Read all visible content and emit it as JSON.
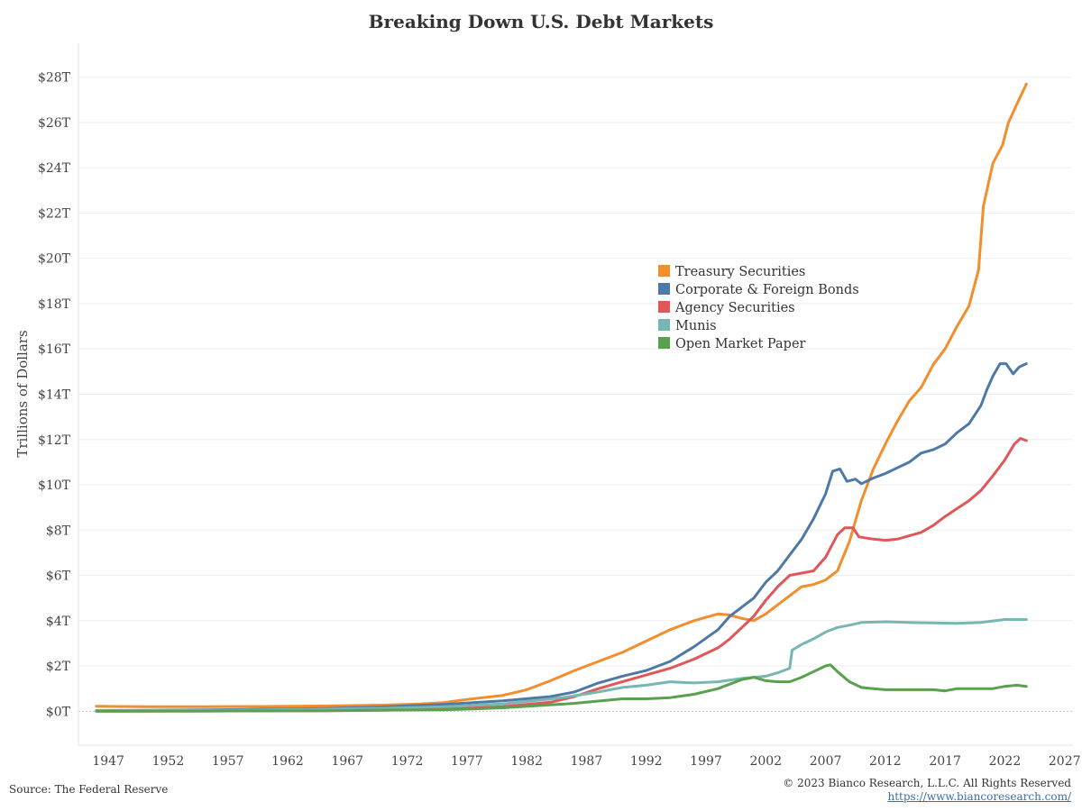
{
  "chart_data": {
    "type": "line",
    "title": "Breaking Down U.S. Debt Markets",
    "ylabel": "Trillions of Dollars",
    "xlabel": "",
    "ylim": [
      -1.5,
      29.5
    ],
    "xlim": [
      1944.5,
      2027.7
    ],
    "yticks": [
      0,
      2,
      4,
      6,
      8,
      10,
      12,
      14,
      16,
      18,
      20,
      22,
      24,
      26,
      28
    ],
    "ytick_labels": [
      "$0T",
      "$2T",
      "$4T",
      "$6T",
      "$8T",
      "$10T",
      "$12T",
      "$14T",
      "$16T",
      "$18T",
      "$20T",
      "$22T",
      "$24T",
      "$26T",
      "$28T"
    ],
    "xticks": [
      1947,
      1952,
      1957,
      1962,
      1967,
      1972,
      1977,
      1982,
      1987,
      1992,
      1997,
      2002,
      2007,
      2012,
      2017,
      2022,
      2027
    ],
    "xtick_labels": [
      "1947",
      "1952",
      "1957",
      "1962",
      "1967",
      "1972",
      "1977",
      "1982",
      "1987",
      "1992",
      "1997",
      "2002",
      "2007",
      "2012",
      "2017",
      "2022",
      "2027"
    ],
    "grid": "horizontal",
    "legend_position": "center-right",
    "series": [
      {
        "name": "Treasury Securities",
        "color": "#f28e2b",
        "points": [
          [
            1946,
            0.22
          ],
          [
            1950,
            0.2
          ],
          [
            1955,
            0.2
          ],
          [
            1960,
            0.21
          ],
          [
            1965,
            0.23
          ],
          [
            1970,
            0.27
          ],
          [
            1973,
            0.32
          ],
          [
            1975,
            0.38
          ],
          [
            1977,
            0.52
          ],
          [
            1980,
            0.7
          ],
          [
            1982,
            0.95
          ],
          [
            1984,
            1.35
          ],
          [
            1986,
            1.8
          ],
          [
            1988,
            2.2
          ],
          [
            1990,
            2.6
          ],
          [
            1992,
            3.1
          ],
          [
            1994,
            3.6
          ],
          [
            1996,
            4.0
          ],
          [
            1998,
            4.3
          ],
          [
            1999,
            4.25
          ],
          [
            2000,
            4.1
          ],
          [
            2001,
            4.0
          ],
          [
            2002,
            4.3
          ],
          [
            2003,
            4.7
          ],
          [
            2004,
            5.1
          ],
          [
            2005,
            5.5
          ],
          [
            2006,
            5.6
          ],
          [
            2007,
            5.8
          ],
          [
            2008,
            6.2
          ],
          [
            2009,
            7.5
          ],
          [
            2010,
            9.3
          ],
          [
            2011,
            10.7
          ],
          [
            2012,
            11.8
          ],
          [
            2013,
            12.8
          ],
          [
            2014,
            13.7
          ],
          [
            2015,
            14.3
          ],
          [
            2016,
            15.3
          ],
          [
            2017,
            16.0
          ],
          [
            2018,
            17.0
          ],
          [
            2019,
            17.9
          ],
          [
            2019.8,
            19.5
          ],
          [
            2020.2,
            22.3
          ],
          [
            2021,
            24.2
          ],
          [
            2021.8,
            25.0
          ],
          [
            2022.3,
            26.0
          ],
          [
            2023,
            26.8
          ],
          [
            2023.8,
            27.7
          ]
        ]
      },
      {
        "name": "Corporate & Foreign Bonds",
        "color": "#4e79a7",
        "points": [
          [
            1946,
            0.03
          ],
          [
            1950,
            0.04
          ],
          [
            1955,
            0.06
          ],
          [
            1960,
            0.09
          ],
          [
            1965,
            0.12
          ],
          [
            1970,
            0.19
          ],
          [
            1975,
            0.3
          ],
          [
            1980,
            0.46
          ],
          [
            1984,
            0.65
          ],
          [
            1986,
            0.85
          ],
          [
            1988,
            1.25
          ],
          [
            1990,
            1.55
          ],
          [
            1992,
            1.8
          ],
          [
            1994,
            2.2
          ],
          [
            1996,
            2.85
          ],
          [
            1998,
            3.6
          ],
          [
            1999,
            4.2
          ],
          [
            2000,
            4.6
          ],
          [
            2001,
            5.0
          ],
          [
            2002,
            5.7
          ],
          [
            2003,
            6.2
          ],
          [
            2004,
            6.9
          ],
          [
            2005,
            7.6
          ],
          [
            2006,
            8.5
          ],
          [
            2007,
            9.6
          ],
          [
            2007.6,
            10.6
          ],
          [
            2008.2,
            10.7
          ],
          [
            2008.8,
            10.15
          ],
          [
            2009.5,
            10.25
          ],
          [
            2010,
            10.05
          ],
          [
            2011,
            10.3
          ],
          [
            2012,
            10.5
          ],
          [
            2013,
            10.75
          ],
          [
            2014,
            11.0
          ],
          [
            2015,
            11.4
          ],
          [
            2016,
            11.55
          ],
          [
            2017,
            11.8
          ],
          [
            2018,
            12.3
          ],
          [
            2019,
            12.7
          ],
          [
            2020,
            13.5
          ],
          [
            2020.5,
            14.2
          ],
          [
            2021,
            14.8
          ],
          [
            2021.6,
            15.35
          ],
          [
            2022.1,
            15.35
          ],
          [
            2022.7,
            14.9
          ],
          [
            2023.2,
            15.2
          ],
          [
            2023.8,
            15.35
          ]
        ]
      },
      {
        "name": "Agency Securities",
        "color": "#e15759",
        "points": [
          [
            1946,
            0.0
          ],
          [
            1955,
            0.01
          ],
          [
            1965,
            0.02
          ],
          [
            1970,
            0.04
          ],
          [
            1975,
            0.09
          ],
          [
            1980,
            0.2
          ],
          [
            1984,
            0.4
          ],
          [
            1986,
            0.65
          ],
          [
            1988,
            1.0
          ],
          [
            1990,
            1.3
          ],
          [
            1992,
            1.6
          ],
          [
            1994,
            1.9
          ],
          [
            1996,
            2.3
          ],
          [
            1998,
            2.8
          ],
          [
            1999,
            3.2
          ],
          [
            2000,
            3.7
          ],
          [
            2001,
            4.2
          ],
          [
            2002,
            4.9
          ],
          [
            2003,
            5.5
          ],
          [
            2004,
            6.0
          ],
          [
            2005,
            6.1
          ],
          [
            2006,
            6.2
          ],
          [
            2007,
            6.8
          ],
          [
            2008,
            7.8
          ],
          [
            2008.6,
            8.1
          ],
          [
            2009.3,
            8.1
          ],
          [
            2009.8,
            7.7
          ],
          [
            2011,
            7.6
          ],
          [
            2012,
            7.55
          ],
          [
            2013,
            7.6
          ],
          [
            2014,
            7.75
          ],
          [
            2015,
            7.9
          ],
          [
            2016,
            8.2
          ],
          [
            2017,
            8.6
          ],
          [
            2018,
            8.95
          ],
          [
            2019,
            9.3
          ],
          [
            2020,
            9.75
          ],
          [
            2021,
            10.4
          ],
          [
            2022,
            11.1
          ],
          [
            2022.8,
            11.8
          ],
          [
            2023.3,
            12.05
          ],
          [
            2023.8,
            11.95
          ]
        ]
      },
      {
        "name": "Munis",
        "color": "#76b7b2",
        "points": [
          [
            1946,
            0.02
          ],
          [
            1955,
            0.04
          ],
          [
            1960,
            0.06
          ],
          [
            1965,
            0.09
          ],
          [
            1970,
            0.13
          ],
          [
            1975,
            0.2
          ],
          [
            1980,
            0.32
          ],
          [
            1985,
            0.6
          ],
          [
            1988,
            0.85
          ],
          [
            1990,
            1.05
          ],
          [
            1992,
            1.15
          ],
          [
            1994,
            1.3
          ],
          [
            1996,
            1.25
          ],
          [
            1998,
            1.3
          ],
          [
            2000,
            1.45
          ],
          [
            2002,
            1.55
          ],
          [
            2003,
            1.7
          ],
          [
            2004,
            1.9
          ],
          [
            2004.2,
            2.7
          ],
          [
            2005,
            2.95
          ],
          [
            2006,
            3.2
          ],
          [
            2007,
            3.5
          ],
          [
            2008,
            3.7
          ],
          [
            2009,
            3.8
          ],
          [
            2010,
            3.92
          ],
          [
            2012,
            3.95
          ],
          [
            2014,
            3.92
          ],
          [
            2016,
            3.9
          ],
          [
            2018,
            3.88
          ],
          [
            2020,
            3.92
          ],
          [
            2022,
            4.05
          ],
          [
            2023.8,
            4.05
          ]
        ]
      },
      {
        "name": "Open Market Paper",
        "color": "#59a14f",
        "points": [
          [
            1946,
            0.0
          ],
          [
            1955,
            0.01
          ],
          [
            1965,
            0.02
          ],
          [
            1970,
            0.05
          ],
          [
            1975,
            0.06
          ],
          [
            1980,
            0.15
          ],
          [
            1983,
            0.25
          ],
          [
            1986,
            0.35
          ],
          [
            1988,
            0.45
          ],
          [
            1990,
            0.55
          ],
          [
            1992,
            0.55
          ],
          [
            1994,
            0.6
          ],
          [
            1996,
            0.75
          ],
          [
            1998,
            1.0
          ],
          [
            1999,
            1.2
          ],
          [
            2000,
            1.4
          ],
          [
            2001,
            1.5
          ],
          [
            2002,
            1.35
          ],
          [
            2003,
            1.3
          ],
          [
            2004,
            1.3
          ],
          [
            2005,
            1.5
          ],
          [
            2006,
            1.75
          ],
          [
            2007,
            2.0
          ],
          [
            2007.4,
            2.05
          ],
          [
            2008,
            1.75
          ],
          [
            2009,
            1.3
          ],
          [
            2010,
            1.05
          ],
          [
            2011,
            1.0
          ],
          [
            2012,
            0.95
          ],
          [
            2014,
            0.95
          ],
          [
            2016,
            0.95
          ],
          [
            2017,
            0.9
          ],
          [
            2018,
            1.0
          ],
          [
            2020,
            1.0
          ],
          [
            2021,
            1.0
          ],
          [
            2022,
            1.1
          ],
          [
            2023,
            1.15
          ],
          [
            2023.8,
            1.1
          ]
        ]
      }
    ]
  },
  "footer": {
    "source": "Source: The Federal Reserve",
    "copyright": "© 2023 Bianco Research, L.L.C. All Rights Reserved",
    "url": "https://www.biancoresearch.com/"
  }
}
